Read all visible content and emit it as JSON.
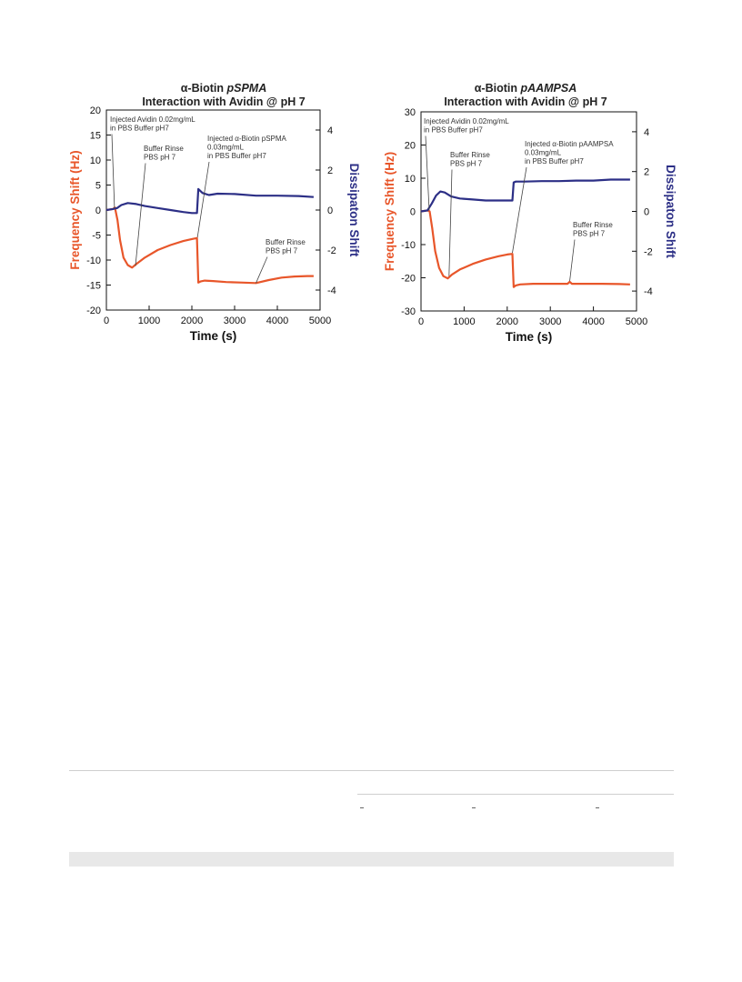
{
  "colors": {
    "frequency": "#e8562a",
    "dissipation": "#2c2f86",
    "axis": "#111111"
  },
  "chart_data": [
    {
      "type": "line",
      "title_lines": [
        [
          "α-Biotin ",
          "pSPMA"
        ],
        [
          "Interaction with Avidin @ pH 7",
          ""
        ]
      ],
      "xlabel": "Time (s)",
      "ylabel": "Frequency Shift (Hz)",
      "y2label": "Dissipaton Shift",
      "xlim": [
        0,
        5000
      ],
      "ylim": [
        -20,
        20
      ],
      "y2lim": [
        -5,
        5
      ],
      "xticks": [
        0,
        1000,
        2000,
        3000,
        4000,
        5000
      ],
      "yticks": [
        -20,
        -15,
        -10,
        -5,
        0,
        5,
        10,
        15,
        20
      ],
      "y2ticks": [
        -4,
        -2,
        0,
        2,
        4
      ],
      "grid": false,
      "series": [
        {
          "name": "Frequency Shift (Hz)",
          "axis": "left",
          "color_key": "frequency",
          "x": [
            0,
            150,
            200,
            260,
            320,
            400,
            500,
            600,
            700,
            900,
            1200,
            1500,
            1800,
            2000,
            2120,
            2150,
            2200,
            2300,
            2500,
            2800,
            3200,
            3500,
            3800,
            4100,
            4400,
            4700,
            4850
          ],
          "y": [
            0,
            0.2,
            0.5,
            -2,
            -6,
            -9.5,
            -11,
            -11.5,
            -10.8,
            -9.5,
            -8,
            -7,
            -6.2,
            -5.8,
            -5.6,
            -14.5,
            -14.3,
            -14.1,
            -14.2,
            -14.4,
            -14.5,
            -14.6,
            -14,
            -13.5,
            -13.3,
            -13.2,
            -13.2
          ]
        },
        {
          "name": "Dissipaton Shift",
          "axis": "right",
          "color_key": "dissipation",
          "x": [
            0,
            150,
            250,
            350,
            500,
            700,
            900,
            1200,
            1500,
            1800,
            2000,
            2120,
            2150,
            2250,
            2400,
            2600,
            3000,
            3500,
            4000,
            4500,
            4850
          ],
          "y": [
            0,
            0.05,
            0.1,
            0.25,
            0.35,
            0.3,
            0.2,
            0.1,
            0.0,
            -0.1,
            -0.15,
            -0.15,
            1.05,
            0.85,
            0.75,
            0.82,
            0.8,
            0.72,
            0.72,
            0.7,
            0.65
          ]
        }
      ],
      "annotations": [
        {
          "lines": [
            "Injected Avidin 0.02mg/mL",
            "in PBS Buffer pH7"
          ],
          "at": [
            190,
            0.3
          ]
        },
        {
          "lines": [
            "Buffer Rinse",
            "PBS pH 7"
          ],
          "at": [
            680,
            -11.2
          ]
        },
        {
          "lines": [
            "Injected α-Biotin pSPMA",
            "0.03mg/mL",
            "in PBS Buffer pH7"
          ],
          "at": [
            2130,
            -5.5
          ]
        },
        {
          "lines": [
            "Buffer Rinse",
            "PBS pH 7"
          ],
          "at": [
            3500,
            -14.6
          ]
        }
      ]
    },
    {
      "type": "line",
      "title_lines": [
        [
          "α-Biotin ",
          "pAAMPSA"
        ],
        [
          "Interaction with Avidin @ pH 7",
          ""
        ]
      ],
      "xlabel": "Time (s)",
      "ylabel": "Frequency Shift (Hz)",
      "y2label": "Dissipaton Shift",
      "xlim": [
        0,
        5000
      ],
      "ylim": [
        -30,
        30
      ],
      "y2lim": [
        -5,
        5
      ],
      "xticks": [
        0,
        1000,
        2000,
        3000,
        4000,
        5000
      ],
      "yticks": [
        -30,
        -20,
        -10,
        0,
        10,
        20,
        30
      ],
      "y2ticks": [
        -4,
        -2,
        0,
        2,
        4
      ],
      "grid": false,
      "series": [
        {
          "name": "Frequency Shift (Hz)",
          "axis": "left",
          "color_key": "frequency",
          "x": [
            0,
            150,
            200,
            260,
            330,
            420,
            520,
            620,
            720,
            900,
            1200,
            1500,
            1800,
            2000,
            2120,
            2150,
            2200,
            2300,
            2600,
            3000,
            3400,
            3450,
            3500,
            3800,
            4200,
            4600,
            4850
          ],
          "y": [
            0,
            0.3,
            0,
            -5,
            -12,
            -17,
            -19.5,
            -20.2,
            -19,
            -17.5,
            -15.8,
            -14.5,
            -13.5,
            -13,
            -12.8,
            -22.8,
            -22.3,
            -22,
            -21.8,
            -21.8,
            -21.8,
            -21.2,
            -21.8,
            -21.8,
            -21.8,
            -21.9,
            -22
          ]
        },
        {
          "name": "Dissipaton Shift",
          "axis": "right",
          "color_key": "dissipation",
          "x": [
            0,
            150,
            250,
            350,
            450,
            550,
            700,
            900,
            1200,
            1500,
            1800,
            2000,
            2120,
            2150,
            2200,
            2400,
            2800,
            3200,
            3600,
            4000,
            4400,
            4850
          ],
          "y": [
            0,
            0.05,
            0.4,
            0.8,
            1.0,
            0.95,
            0.75,
            0.65,
            0.6,
            0.55,
            0.55,
            0.55,
            0.55,
            1.45,
            1.5,
            1.5,
            1.52,
            1.52,
            1.55,
            1.55,
            1.6,
            1.6
          ]
        }
      ],
      "annotations": [
        {
          "lines": [
            "Injected Avidin 0.02mg/mL",
            "in PBS Buffer pH7"
          ],
          "at": [
            190,
            0.3
          ]
        },
        {
          "lines": [
            "Buffer Rinse",
            "PBS pH 7"
          ],
          "at": [
            650,
            -19.5
          ]
        },
        {
          "lines": [
            "Injected α-Biotin pAAMPSA",
            "0.03mg/mL",
            "in PBS Buffer pH7"
          ],
          "at": [
            2120,
            -12.5
          ]
        },
        {
          "lines": [
            "Buffer Rinse",
            "PBS pH 7"
          ],
          "at": [
            3450,
            -21
          ]
        }
      ]
    }
  ]
}
